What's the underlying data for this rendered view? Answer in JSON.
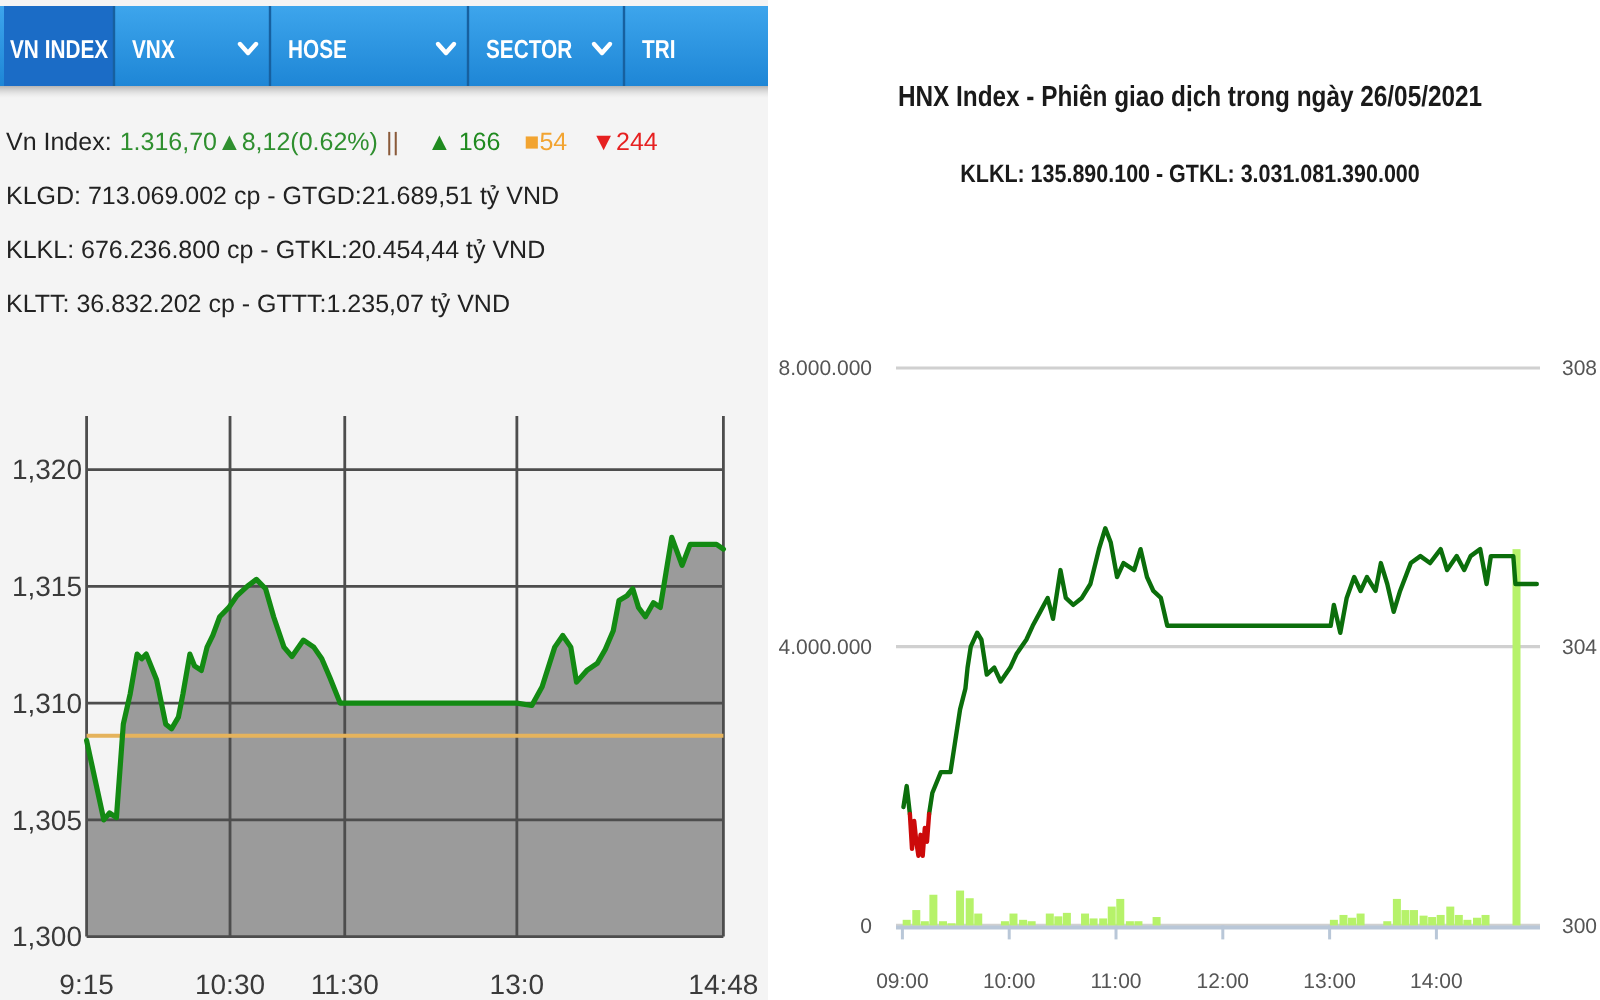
{
  "chart_data": [
    {
      "type": "other",
      "categories": [
        "VN INDEX",
        "VNX",
        "HOSE",
        "SECTOR",
        "TRI"
      ],
      "annotations": [
        "Vn Index:",
        "1.316,70▲8,12(0.62%)",
        "||",
        "▲ 166",
        "■54",
        "▼244",
        "KLGD: 713.069.002 cp - GTGD:21.689,51 tỷ VND",
        "KLKL: 676.236.800 cp - GTKL:20.454,44 tỷ VND",
        "KLTT: 36.832.202 cp - GTTT:1.235,07 tỷ VND"
      ]
    },
    {
      "type": "area",
      "x": [
        9.25,
        9.4,
        9.45,
        9.51,
        9.57,
        9.63,
        9.69,
        9.73,
        9.77,
        9.86,
        9.94,
        9.99,
        10.05,
        10.09,
        10.15,
        10.19,
        10.25,
        10.3,
        10.35,
        10.41,
        10.49,
        10.56,
        10.65,
        10.73,
        10.81,
        10.88,
        10.97,
        11.04,
        11.14,
        11.23,
        11.3,
        11.37,
        11.46,
        13,
        13.13,
        13.22,
        13.33,
        13.4,
        13.47,
        13.52,
        13.61,
        13.7,
        13.77,
        13.84,
        13.89,
        13.96,
        14.01,
        14.06,
        14.12,
        14.19,
        14.25,
        14.3,
        14.35,
        14.44,
        14.51,
        14.74,
        14.8
      ],
      "values": [
        1308.4,
        1305,
        1305.3,
        1305.1,
        1309.1,
        1310.4,
        1312.1,
        1311.9,
        1312.1,
        1311,
        1309.1,
        1308.9,
        1309.4,
        1310.4,
        1312.1,
        1311.6,
        1311.4,
        1312.4,
        1312.9,
        1313.7,
        1314.1,
        1314.6,
        1315,
        1315.3,
        1314.9,
        1313.7,
        1312.4,
        1312,
        1312.7,
        1312.4,
        1311.9,
        1311.1,
        1310,
        1310,
        1309.9,
        1310.7,
        1312.4,
        1312.9,
        1312.4,
        1310.9,
        1311.4,
        1311.7,
        1312.3,
        1313.1,
        1314.4,
        1314.6,
        1314.9,
        1314.1,
        1313.7,
        1314.3,
        1314.1,
        1315.6,
        1317.1,
        1315.9,
        1316.8,
        1316.8,
        1316.6
      ],
      "color": "#138a13",
      "xlim": [
        9.25,
        14.8
      ],
      "xticks": [
        {
          "value": 9.25,
          "label": "9:15"
        },
        {
          "value": 10.5,
          "label": "10:30"
        },
        {
          "value": 11.5,
          "label": "11:30"
        },
        {
          "value": 13,
          "label": "13:0"
        },
        {
          "value": 14.8,
          "label": "14:48"
        }
      ],
      "ylim": [
        1300,
        1322.3
      ],
      "yticks": [
        {
          "value": 1300,
          "label": "1,300"
        },
        {
          "value": 1305,
          "label": "1,305"
        },
        {
          "value": 1310,
          "label": "1,310"
        },
        {
          "value": 1315,
          "label": "1,315"
        },
        {
          "value": 1320,
          "label": "1,320"
        }
      ],
      "grid": true,
      "ref_lines": [
        {
          "axis": "y",
          "value": 1308.6,
          "color": "#e5b35c"
        }
      ]
    },
    {
      "type": "line",
      "title": "HNX Index - Phiên giao dịch trong ngày 26/05/2021",
      "subtitle": "KLKL: 135.890.100 - GTKL: 3.031.081.390.000",
      "series": [
        {
          "type": "bar",
          "color": "#b6f26a",
          "x": [
            9.04,
            9.13,
            9.21,
            9.29,
            9.38,
            9.46,
            9.54,
            9.63,
            9.71,
            9.96,
            10.04,
            10.13,
            10.21,
            10.38,
            10.46,
            10.54,
            10.71,
            10.79,
            10.88,
            10.96,
            11.04,
            11.13,
            11.21,
            11.38,
            13.04,
            13.13,
            13.21,
            13.29,
            13.54,
            13.63,
            13.71,
            13.79,
            13.88,
            13.96,
            14.04,
            14.13,
            14.21,
            14.29,
            14.38,
            14.46,
            14.75
          ],
          "values": [
            80000,
            220000,
            60000,
            440000,
            60000,
            30000,
            500000,
            390000,
            170000,
            60000,
            170000,
            80000,
            60000,
            170000,
            130000,
            180000,
            170000,
            100000,
            100000,
            270000,
            380000,
            60000,
            60000,
            120000,
            80000,
            150000,
            110000,
            170000,
            60000,
            380000,
            220000,
            220000,
            140000,
            120000,
            150000,
            270000,
            150000,
            80000,
            110000,
            150000,
            5400000
          ]
        },
        {
          "type": "line",
          "axis": "y2",
          "color": "#0b6e0b",
          "x": [
            9.01,
            9.04,
            9.07,
            9.15,
            9.25,
            9.28,
            9.36,
            9.45,
            9.49,
            9.54,
            9.59,
            9.61,
            9.64,
            9.7,
            9.74,
            9.79,
            9.86,
            9.92,
            10.01,
            10.07,
            10.16,
            10.22,
            10.29,
            10.36,
            10.41,
            10.48,
            10.53,
            10.6,
            10.68,
            10.76,
            10.84,
            10.9,
            10.95,
            11.01,
            11.07,
            11.17,
            11.23,
            11.29,
            11.35,
            11.42,
            11.48,
            11.51,
            13.01,
            13.04,
            13.1,
            13.16,
            13.23,
            13.29,
            13.35,
            13.43,
            13.48,
            13.54,
            13.6,
            13.66,
            13.76,
            13.85,
            13.94,
            14.04,
            14.1,
            14.19,
            14.26,
            14.32,
            14.41,
            14.47,
            14.51,
            14.72,
            14.74,
            14.94
          ],
          "values": [
            301.7,
            302,
            301.6,
            null,
            301.6,
            301.9,
            302.2,
            302.2,
            302.6,
            303.1,
            303.4,
            303.7,
            304,
            304.2,
            304.1,
            303.6,
            303.7,
            303.5,
            303.7,
            303.9,
            304.1,
            304.3,
            304.5,
            304.7,
            304.4,
            305.1,
            304.7,
            304.6,
            304.7,
            304.9,
            305.4,
            305.7,
            305.5,
            305,
            305.2,
            305.1,
            305.4,
            305,
            304.8,
            304.7,
            304.3,
            304.3,
            304.3,
            304.6,
            304.2,
            304.7,
            305,
            304.8,
            305,
            304.8,
            305.2,
            304.9,
            304.5,
            304.8,
            305.2,
            305.3,
            305.2,
            305.4,
            305.1,
            305.3,
            305.1,
            305.3,
            305.4,
            304.9,
            305.3,
            305.3,
            304.9,
            304.9
          ]
        },
        {
          "type": "line",
          "axis": "y2",
          "color": "#cc0a0a",
          "x": [
            9.07,
            9.09,
            9.11,
            9.13,
            9.15,
            9.17,
            9.19,
            9.21,
            9.23,
            9.25
          ],
          "values": [
            301.6,
            301.1,
            301.5,
            301.2,
            301,
            301.3,
            301,
            301.4,
            301.2,
            301.6
          ]
        }
      ],
      "xlim": [
        8.94,
        14.97
      ],
      "xticks": [
        {
          "value": 9,
          "label": "09:00"
        },
        {
          "value": 10,
          "label": "10:00"
        },
        {
          "value": 11,
          "label": "11:00"
        },
        {
          "value": 12,
          "label": "12:00"
        },
        {
          "value": 13,
          "label": "13:00"
        },
        {
          "value": 14,
          "label": "14:00"
        }
      ],
      "ylim": [
        0,
        8000000
      ],
      "yticks": [
        0,
        {
          "value": 4000000,
          "label": "4.000.000"
        },
        {
          "value": 8000000,
          "label": "8.000.000"
        }
      ],
      "y2lim": [
        300,
        308
      ],
      "y2ticks": [
        300,
        304,
        308
      ],
      "grid": "y"
    }
  ]
}
